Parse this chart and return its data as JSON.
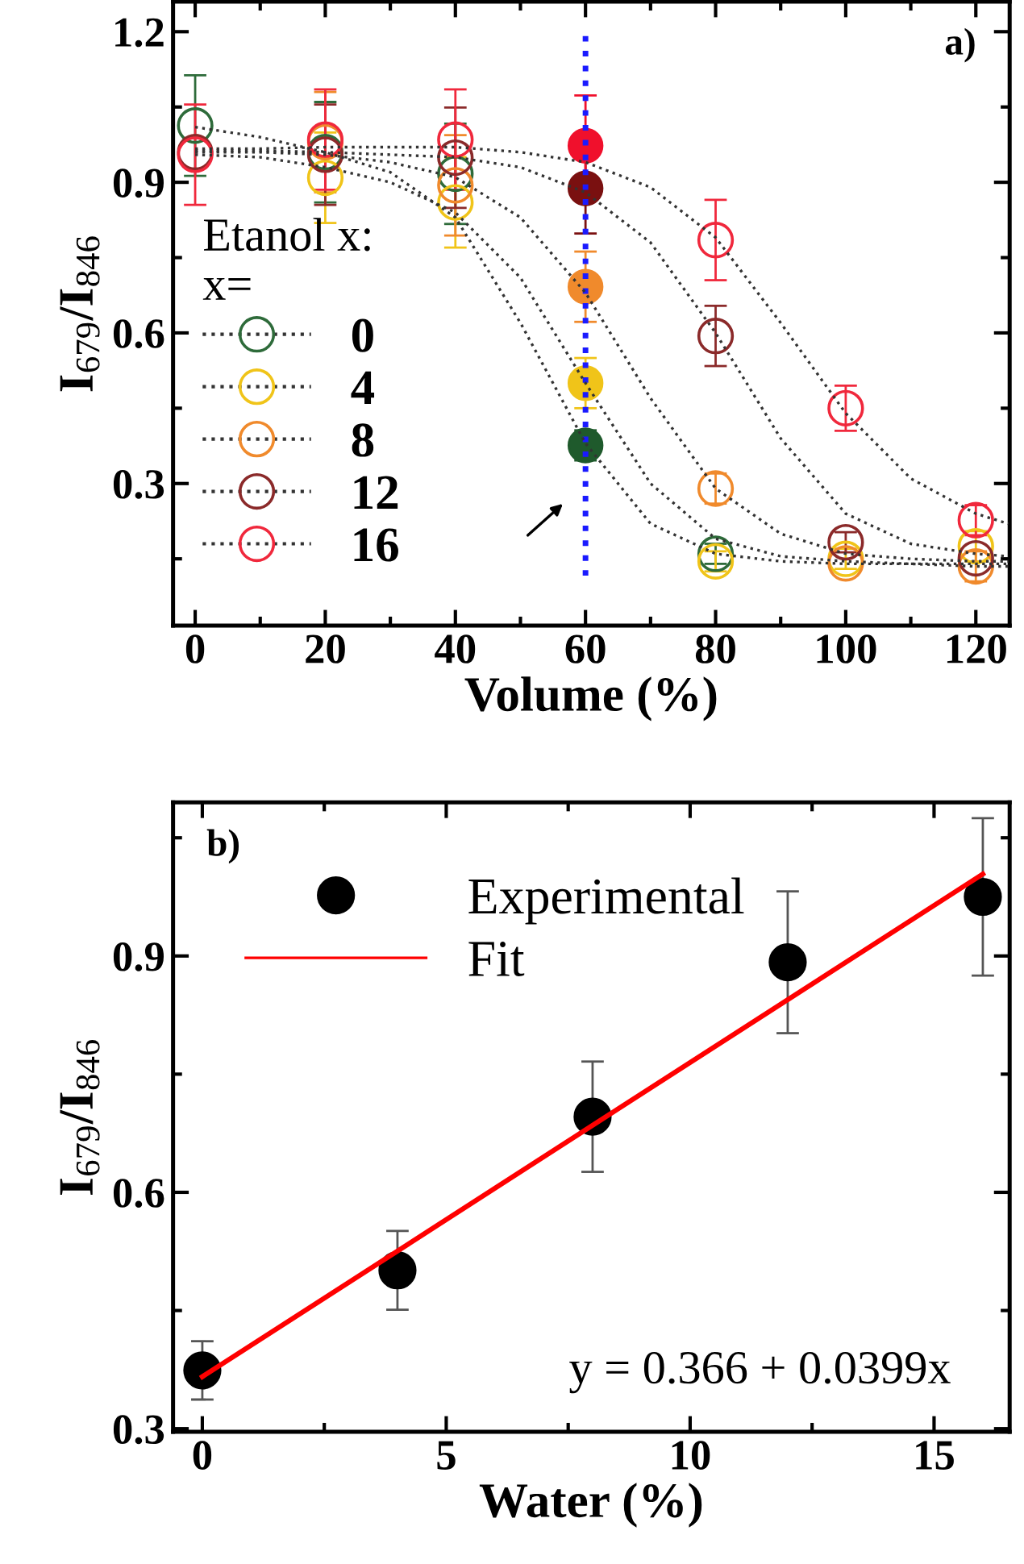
{
  "chart_data": [
    {
      "type": "scatter",
      "annotations": [
        "a)"
      ],
      "xlabel": "Volume (%)",
      "ylabel": "I$_{679}$/I$_{846}$",
      "legend_title": "Etanol x:\nx=",
      "x": [
        0,
        20,
        40,
        60,
        80,
        100,
        120
      ],
      "series": [
        {
          "name": "0",
          "marker": "circle",
          "color": "#2e6b3a",
          "values": [
            1.013,
            0.96,
            0.917,
            null,
            0.16,
            null,
            null
          ],
          "errors": [
            0.1,
            0.1,
            0.1,
            null,
            0.02,
            null,
            null
          ]
        },
        {
          "name": "4",
          "marker": "circle",
          "color": "#f0c419",
          "values": [
            null,
            0.909,
            0.86,
            null,
            0.145,
            0.15,
            0.175
          ],
          "errors": [
            null,
            0.09,
            0.09,
            null,
            0.02,
            0.02,
            0.03
          ]
        },
        {
          "name": "8",
          "marker": "circle",
          "color": "#f08a2c",
          "values": [
            null,
            0.98,
            0.894,
            null,
            0.29,
            0.141,
            0.135
          ],
          "errors": [
            null,
            0.1,
            0.1,
            null,
            0.03,
            null,
            0.03
          ]
        },
        {
          "name": "12",
          "marker": "circle",
          "color": "#8b2a2a",
          "values": [
            0.96,
            0.955,
            0.949,
            null,
            0.594,
            0.183,
            0.151
          ],
          "errors": [
            null,
            0.1,
            0.1,
            null,
            0.06,
            0.02,
            null
          ]
        },
        {
          "name": "16",
          "marker": "circle",
          "color": "#f0283c",
          "values": [
            0.955,
            0.985,
            0.985,
            null,
            0.785,
            0.45,
            0.227
          ],
          "errors": [
            0.1,
            0.1,
            0.1,
            null,
            0.08,
            0.045,
            0.03
          ]
        },
        {
          "type": "scatter",
          "marker": "circle",
          "x": [
            60,
            60,
            60,
            60,
            60
          ],
          "colors": [
            "#1f5a2c",
            "#f0c419",
            "#f08a2c",
            "#7a1010",
            "#f0102c"
          ],
          "values": [
            0.376,
            0.5,
            0.692,
            0.888,
            0.973
          ],
          "errors": [
            0.03,
            0.05,
            0.07,
            0.09,
            0.1
          ]
        },
        {
          "type": "line",
          "color": "#333333",
          "x": [
            0,
            10,
            20,
            30,
            40,
            50,
            60,
            70,
            80,
            90,
            100,
            110,
            120,
            125
          ],
          "values": [
            1.01,
            0.99,
            0.96,
            0.92,
            0.83,
            0.62,
            0.38,
            0.22,
            0.16,
            0.145,
            0.14,
            0.14,
            0.14,
            0.14
          ]
        },
        {
          "type": "line",
          "color": "#333333",
          "x": [
            0,
            10,
            20,
            30,
            40,
            50,
            60,
            70,
            80,
            90,
            100,
            110,
            120,
            125
          ],
          "values": [
            0.955,
            0.95,
            0.93,
            0.9,
            0.84,
            0.71,
            0.5,
            0.3,
            0.19,
            0.155,
            0.145,
            0.14,
            0.135,
            0.135
          ]
        },
        {
          "type": "line",
          "color": "#333333",
          "x": [
            0,
            10,
            20,
            30,
            40,
            50,
            60,
            70,
            80,
            90,
            100,
            110,
            120,
            125
          ],
          "values": [
            0.96,
            0.96,
            0.955,
            0.94,
            0.91,
            0.83,
            0.68,
            0.47,
            0.29,
            0.2,
            0.16,
            0.15,
            0.145,
            0.145
          ]
        },
        {
          "type": "line",
          "color": "#333333",
          "x": [
            0,
            10,
            20,
            30,
            40,
            50,
            60,
            70,
            80,
            90,
            100,
            110,
            120,
            125
          ],
          "values": [
            0.963,
            0.963,
            0.96,
            0.955,
            0.95,
            0.93,
            0.88,
            0.78,
            0.6,
            0.39,
            0.24,
            0.18,
            0.16,
            0.155
          ]
        },
        {
          "type": "line",
          "color": "#333333",
          "x": [
            0,
            10,
            20,
            30,
            40,
            50,
            60,
            70,
            80,
            90,
            100,
            110,
            120,
            125
          ],
          "values": [
            0.967,
            0.967,
            0.97,
            0.97,
            0.97,
            0.96,
            0.94,
            0.89,
            0.79,
            0.62,
            0.44,
            0.31,
            0.24,
            0.22
          ]
        }
      ],
      "line_style": "dotted",
      "ref_lines": [
        {
          "axis": "x",
          "value": 60,
          "color": "#1a1aff",
          "line_style": "dotted"
        }
      ],
      "xlim": [
        -3.4,
        125.2
      ],
      "ylim": [
        0.017,
        1.26
      ],
      "xticks": [
        0,
        20,
        40,
        60,
        80,
        100,
        120
      ],
      "yticks": [
        0.3,
        0.6,
        0.9,
        1.2
      ],
      "grid": false,
      "legend": "left"
    },
    {
      "type": "scatter",
      "annotations": [
        "b)",
        "y = 0.366 + 0.0399x"
      ],
      "xlabel": "Water (%)",
      "ylabel": "I$_{679}$/I$_{846}$",
      "x": [
        0,
        4,
        8,
        12,
        16
      ],
      "series": [
        {
          "name": "Experimental",
          "marker": "circle",
          "color": "#000000",
          "values": [
            0.374,
            0.501,
            0.696,
            0.892,
            0.975
          ],
          "errors": [
            0.037,
            0.05,
            0.07,
            0.09,
            0.1
          ]
        },
        {
          "name": "Fit",
          "type": "line",
          "color": "#ff0000",
          "x": [
            0,
            16
          ],
          "values": [
            0.366,
            1.004
          ]
        }
      ],
      "xlim": [
        -0.6,
        16.55
      ],
      "ylim": [
        0.296,
        1.095
      ],
      "xticks": [
        0,
        5,
        10,
        15
      ],
      "yticks": [
        0.3,
        0.6,
        0.9
      ],
      "grid": false,
      "legend": "top left"
    }
  ]
}
